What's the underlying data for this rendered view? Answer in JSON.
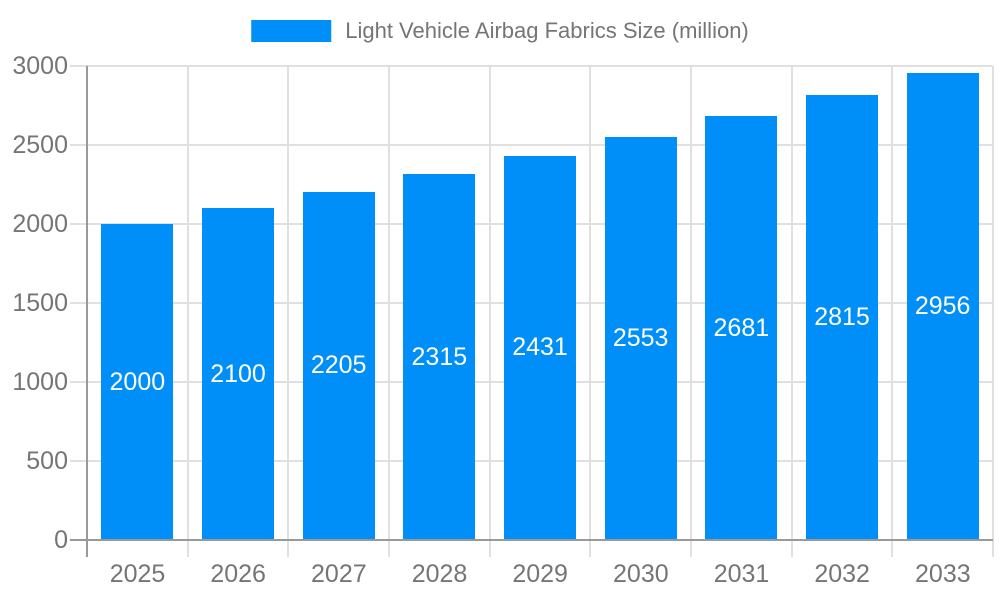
{
  "colors": {
    "bar": "#008FF8",
    "grid": "#E0E0E0",
    "axis": "#999999",
    "text": "#757575",
    "bar_label": "#FFFFFF"
  },
  "chart_data": {
    "type": "bar",
    "title": "Light Vehicle Airbag Fabrics Size (million)",
    "categories": [
      "2025",
      "2026",
      "2027",
      "2028",
      "2029",
      "2030",
      "2031",
      "2032",
      "2033"
    ],
    "values": [
      2000,
      2100,
      2205,
      2315,
      2431,
      2553,
      2681,
      2815,
      2956
    ],
    "series_name": "Light Vehicle Airbag Fabrics Size (million)",
    "xlabel": "",
    "ylabel": "",
    "ylim": [
      0,
      3000
    ],
    "ytick_interval": 500,
    "yticks": [
      0,
      500,
      1000,
      1500,
      2000,
      2500,
      3000
    ],
    "grid": true,
    "legend_position": "top",
    "bar_value_labels_shown": true,
    "bar_value_label_position": "center"
  }
}
